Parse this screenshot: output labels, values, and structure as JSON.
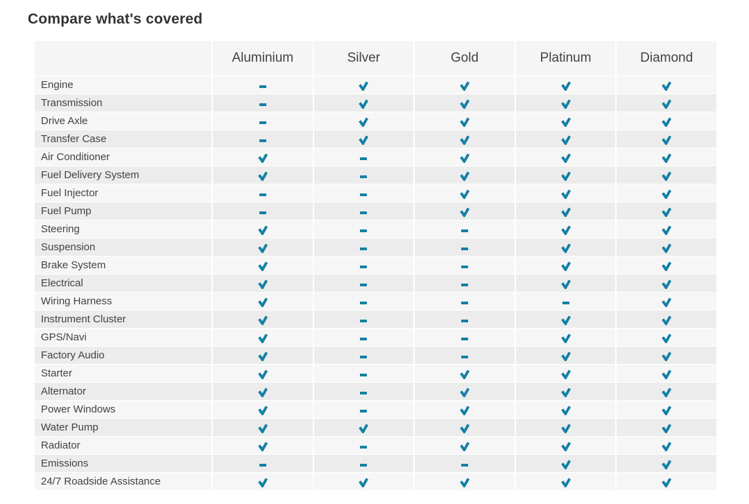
{
  "page": {
    "title": "Compare what's covered"
  },
  "table": {
    "columns": [
      "Aluminium",
      "Silver",
      "Gold",
      "Platinum",
      "Diamond"
    ],
    "rows": [
      {
        "label": "Engine",
        "coverage": [
          false,
          true,
          true,
          true,
          true
        ]
      },
      {
        "label": "Transmission",
        "coverage": [
          false,
          true,
          true,
          true,
          true
        ]
      },
      {
        "label": "Drive Axle",
        "coverage": [
          false,
          true,
          true,
          true,
          true
        ]
      },
      {
        "label": "Transfer Case",
        "coverage": [
          false,
          true,
          true,
          true,
          true
        ]
      },
      {
        "label": "Air Conditioner",
        "coverage": [
          true,
          false,
          true,
          true,
          true
        ]
      },
      {
        "label": "Fuel Delivery System",
        "coverage": [
          true,
          false,
          true,
          true,
          true
        ]
      },
      {
        "label": "Fuel Injector",
        "coverage": [
          false,
          false,
          true,
          true,
          true
        ]
      },
      {
        "label": "Fuel Pump",
        "coverage": [
          false,
          false,
          true,
          true,
          true
        ]
      },
      {
        "label": "Steering",
        "coverage": [
          true,
          false,
          false,
          true,
          true
        ]
      },
      {
        "label": "Suspension",
        "coverage": [
          true,
          false,
          false,
          true,
          true
        ]
      },
      {
        "label": "Brake System",
        "coverage": [
          true,
          false,
          false,
          true,
          true
        ]
      },
      {
        "label": "Electrical",
        "coverage": [
          true,
          false,
          false,
          true,
          true
        ]
      },
      {
        "label": "Wiring Harness",
        "coverage": [
          true,
          false,
          false,
          false,
          true
        ]
      },
      {
        "label": "Instrument Cluster",
        "coverage": [
          true,
          false,
          false,
          true,
          true
        ]
      },
      {
        "label": "GPS/Navi",
        "coverage": [
          true,
          false,
          false,
          true,
          true
        ]
      },
      {
        "label": "Factory Audio",
        "coverage": [
          true,
          false,
          false,
          true,
          true
        ]
      },
      {
        "label": "Starter",
        "coverage": [
          true,
          false,
          true,
          true,
          true
        ]
      },
      {
        "label": "Alternator",
        "coverage": [
          true,
          false,
          true,
          true,
          true
        ]
      },
      {
        "label": "Power Windows",
        "coverage": [
          true,
          false,
          true,
          true,
          true
        ]
      },
      {
        "label": "Water Pump",
        "coverage": [
          true,
          true,
          true,
          true,
          true
        ]
      },
      {
        "label": "Radiator",
        "coverage": [
          true,
          false,
          true,
          true,
          true
        ]
      },
      {
        "label": "Emissions",
        "coverage": [
          false,
          false,
          false,
          true,
          true
        ]
      },
      {
        "label": "24/7 Roadside Assistance",
        "coverage": [
          true,
          true,
          true,
          true,
          true
        ]
      }
    ],
    "legend": {
      "covered_icon": "check-icon",
      "not_covered_icon": "dash-icon"
    },
    "colors": {
      "accent": "#137fa5",
      "row_light": "#f5f6f5",
      "row_dark": "#ececec",
      "header_bg": "#f5f5f5",
      "text": "#424242",
      "title_text": "#333333"
    }
  }
}
